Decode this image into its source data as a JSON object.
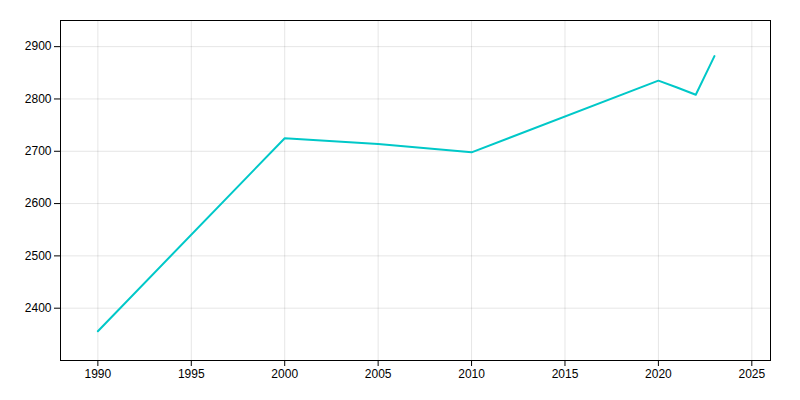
{
  "chart_data": {
    "type": "line",
    "x": [
      1990,
      2000,
      2005,
      2010,
      2020,
      2021,
      2022,
      2023
    ],
    "values": [
      2356,
      2725,
      2714,
      2698,
      2835,
      2822,
      2808,
      2882
    ],
    "color": "#00c8c8",
    "xlim": [
      1988,
      2026
    ],
    "ylim": [
      2300,
      2950
    ],
    "xticks": [
      1990,
      1995,
      2000,
      2005,
      2010,
      2015,
      2020,
      2025
    ],
    "yticks": [
      2400,
      2500,
      2600,
      2700,
      2800,
      2900
    ],
    "grid": true
  }
}
